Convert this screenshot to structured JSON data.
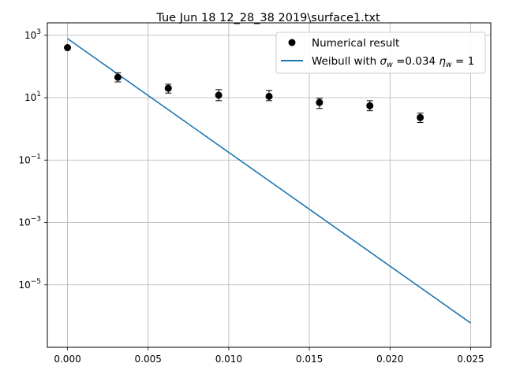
{
  "chart_data": {
    "type": "scatter",
    "title": "Tue Jun 18 12_28_38 2019\\surface1.txt",
    "xlabel": "",
    "ylabel": "",
    "xscale": "linear",
    "yscale": "log",
    "xlim": [
      -0.00125,
      0.02625
    ],
    "ylim": [
      1e-07,
      2500.0
    ],
    "grid": true,
    "legend_position": "top-right",
    "x_ticks": [
      {
        "value": 0.0,
        "label": "0.000"
      },
      {
        "value": 0.005,
        "label": "0.005"
      },
      {
        "value": 0.01,
        "label": "0.010"
      },
      {
        "value": 0.015,
        "label": "0.015"
      },
      {
        "value": 0.02,
        "label": "0.020"
      },
      {
        "value": 0.025,
        "label": "0.025"
      }
    ],
    "y_ticks": [
      {
        "value": 1e-05,
        "base": "10",
        "exp": "−5"
      },
      {
        "value": 0.001,
        "base": "10",
        "exp": "−3"
      },
      {
        "value": 0.1,
        "base": "10",
        "exp": "−1"
      },
      {
        "value": 10,
        "base": "10",
        "exp": "1"
      },
      {
        "value": 1000,
        "base": "10",
        "exp": "3"
      }
    ],
    "series": [
      {
        "name": "Numerical result",
        "kind": "points",
        "color": "#000000",
        "x": [
          0.0,
          0.003125,
          0.00625,
          0.009375,
          0.0125,
          0.015625,
          0.01875,
          0.021875
        ],
        "y": [
          400,
          45,
          20,
          12,
          11,
          7,
          5.5,
          2.3
        ],
        "y_err_low": [
          400,
          32,
          14,
          8,
          8,
          4.5,
          3.8,
          1.6
        ],
        "y_err_high": [
          400,
          62,
          27,
          18,
          17,
          9.5,
          8,
          3.2
        ]
      },
      {
        "name_parts": {
          "prefix": "Weibull with ",
          "sigma_symbol": "σ",
          "sigma_sub": "w",
          "sigma_value": " =0.034 ",
          "eta_symbol": "η",
          "eta_sub": "w",
          "eta_value": " = 1"
        },
        "kind": "line",
        "color": "#1f77b4",
        "x": [
          0.0,
          0.025
        ],
        "y": [
          780,
          6e-07
        ]
      }
    ]
  }
}
